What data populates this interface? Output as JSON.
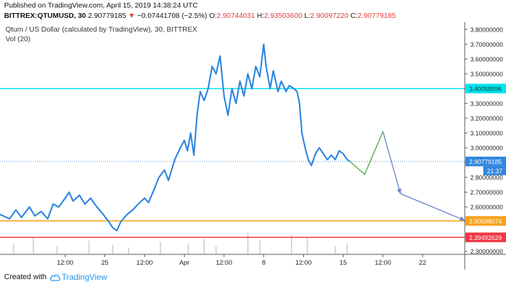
{
  "header": {
    "published": "Published on TradingView.com, April 15, 2019 14:38:24 UTC",
    "symbol": "BITTREX:QTUMUSD, 30",
    "last": "2.90779185",
    "arrow": "▼",
    "change": "−0.07441708 (−2.5%)",
    "o_label": "O:",
    "o_value": "2.90744031",
    "h_label": "H:",
    "h_value": "2.93503600",
    "l_label": "L:",
    "l_value": "2.90097220",
    "c_label": "C:",
    "c_value": "2.90779185"
  },
  "legend": {
    "title": "Qtum / US Dollar (calculated by TradingView), 30, BITTREX",
    "volume": "Vol (20)"
  },
  "footer": {
    "created": "Created with",
    "brand": "TradingView"
  },
  "colors": {
    "price_line": "#2f86e0",
    "cyan": "#00e5ee",
    "orange": "#f7a11a",
    "red": "#f23645",
    "projection_green": "#4caf50",
    "projection_blue": "#6a86c7",
    "last_label_bg": "#2f86e0",
    "countdown_bg": "#2f86e0"
  },
  "chart_data": {
    "type": "line",
    "ylim": [
      2.28,
      3.85
    ],
    "y_ticks": [
      "3.80000000",
      "3.70000000",
      "3.60000000",
      "3.50000000",
      "3.40000000",
      "3.30000000",
      "3.20000000",
      "3.10000000",
      "3.00000000",
      "2.90000000",
      "2.80000000",
      "2.70000000",
      "2.60000000",
      "2.50000000",
      "2.40000000",
      "2.30000000"
    ],
    "x_ticks": [
      {
        "label": "12:00",
        "pos": 0.5
      },
      {
        "label": "25",
        "pos": 1.0
      },
      {
        "label": "12:00",
        "pos": 1.5
      },
      {
        "label": "Apr",
        "pos": 2.0
      },
      {
        "label": "12:00",
        "pos": 2.5
      },
      {
        "label": "8",
        "pos": 3.0
      },
      {
        "label": "12:00",
        "pos": 3.5
      },
      {
        "label": "15",
        "pos": 4.0
      },
      {
        "label": "12:00",
        "pos": 4.5
      },
      {
        "label": "22",
        "pos": 5.0
      }
    ],
    "x_range": [
      -0.32,
      5.53
    ],
    "series": [
      {
        "name": "",
        "points": [
          [
            -0.32,
            2.55
          ],
          [
            -0.2,
            2.52
          ],
          [
            -0.12,
            2.58
          ],
          [
            -0.05,
            2.53
          ],
          [
            0.05,
            2.6
          ],
          [
            0.12,
            2.54
          ],
          [
            0.2,
            2.57
          ],
          [
            0.28,
            2.52
          ],
          [
            0.35,
            2.62
          ],
          [
            0.42,
            2.6
          ],
          [
            0.5,
            2.66
          ],
          [
            0.55,
            2.7
          ],
          [
            0.6,
            2.64
          ],
          [
            0.68,
            2.68
          ],
          [
            0.75,
            2.62
          ],
          [
            0.82,
            2.66
          ],
          [
            0.9,
            2.6
          ],
          [
            0.98,
            2.55
          ],
          [
            1.05,
            2.5
          ],
          [
            1.1,
            2.46
          ],
          [
            1.15,
            2.44
          ],
          [
            1.2,
            2.5
          ],
          [
            1.28,
            2.55
          ],
          [
            1.35,
            2.58
          ],
          [
            1.42,
            2.62
          ],
          [
            1.5,
            2.66
          ],
          [
            1.55,
            2.63
          ],
          [
            1.62,
            2.72
          ],
          [
            1.68,
            2.8
          ],
          [
            1.75,
            2.85
          ],
          [
            1.8,
            2.78
          ],
          [
            1.88,
            2.92
          ],
          [
            1.95,
            3.0
          ],
          [
            2.0,
            3.05
          ],
          [
            2.04,
            2.98
          ],
          [
            2.08,
            3.1
          ],
          [
            2.12,
            2.95
          ],
          [
            2.16,
            3.22
          ],
          [
            2.2,
            3.38
          ],
          [
            2.25,
            3.32
          ],
          [
            2.3,
            3.4
          ],
          [
            2.35,
            3.55
          ],
          [
            2.4,
            3.5
          ],
          [
            2.45,
            3.62
          ],
          [
            2.5,
            3.35
          ],
          [
            2.55,
            3.22
          ],
          [
            2.6,
            3.4
          ],
          [
            2.65,
            3.3
          ],
          [
            2.7,
            3.45
          ],
          [
            2.75,
            3.35
          ],
          [
            2.8,
            3.5
          ],
          [
            2.85,
            3.4
          ],
          [
            2.9,
            3.55
          ],
          [
            2.95,
            3.48
          ],
          [
            3.0,
            3.7
          ],
          [
            3.03,
            3.55
          ],
          [
            3.08,
            3.4
          ],
          [
            3.12,
            3.52
          ],
          [
            3.18,
            3.38
          ],
          [
            3.22,
            3.45
          ],
          [
            3.28,
            3.38
          ],
          [
            3.32,
            3.42
          ],
          [
            3.38,
            3.4
          ],
          [
            3.42,
            3.38
          ],
          [
            3.45,
            3.3
          ],
          [
            3.48,
            3.1
          ],
          [
            3.5,
            3.05
          ],
          [
            3.53,
            2.98
          ],
          [
            3.56,
            2.92
          ],
          [
            3.6,
            2.88
          ],
          [
            3.65,
            2.96
          ],
          [
            3.7,
            3.0
          ],
          [
            3.75,
            2.96
          ],
          [
            3.8,
            2.92
          ],
          [
            3.85,
            2.95
          ],
          [
            3.9,
            2.92
          ],
          [
            3.95,
            2.98
          ],
          [
            4.0,
            2.96
          ],
          [
            4.05,
            2.92
          ],
          [
            4.08,
            2.91
          ]
        ]
      }
    ],
    "horizontal_levels": [
      {
        "value": 3.40058596,
        "label": "3.40058596",
        "color": "#00e5ee"
      },
      {
        "value": 2.50598074,
        "label": "2.50598074",
        "color": "#f7a11a"
      },
      {
        "value": 2.39492629,
        "label": "2.39492629",
        "color": "#f23645"
      }
    ],
    "last_price": {
      "value": 2.90779185,
      "label": "2.90779185"
    },
    "countdown": "21:37",
    "projection": [
      {
        "color": "#4caf50",
        "points": [
          [
            4.08,
            2.91
          ],
          [
            4.27,
            2.82
          ],
          [
            4.5,
            3.11
          ]
        ]
      },
      {
        "color": "#6a86c7",
        "points": [
          [
            4.5,
            3.11
          ],
          [
            4.72,
            2.69
          ],
          [
            5.53,
            2.51
          ]
        ]
      }
    ],
    "volume_bars": [
      {
        "x": -0.15,
        "v": 0.4
      },
      {
        "x": 0.1,
        "v": 0.6
      },
      {
        "x": 0.4,
        "v": 0.3
      },
      {
        "x": 0.8,
        "v": 0.5
      },
      {
        "x": 1.1,
        "v": 0.35
      },
      {
        "x": 1.3,
        "v": 0.25
      },
      {
        "x": 1.7,
        "v": 0.45
      },
      {
        "x": 2.05,
        "v": 0.4
      },
      {
        "x": 2.25,
        "v": 0.55
      },
      {
        "x": 2.4,
        "v": 0.3
      },
      {
        "x": 2.8,
        "v": 0.8
      },
      {
        "x": 2.95,
        "v": 0.5
      },
      {
        "x": 3.35,
        "v": 0.7
      },
      {
        "x": 3.55,
        "v": 0.6
      },
      {
        "x": 3.9,
        "v": 0.3
      },
      {
        "x": 4.05,
        "v": 0.4
      }
    ],
    "grid": false
  }
}
